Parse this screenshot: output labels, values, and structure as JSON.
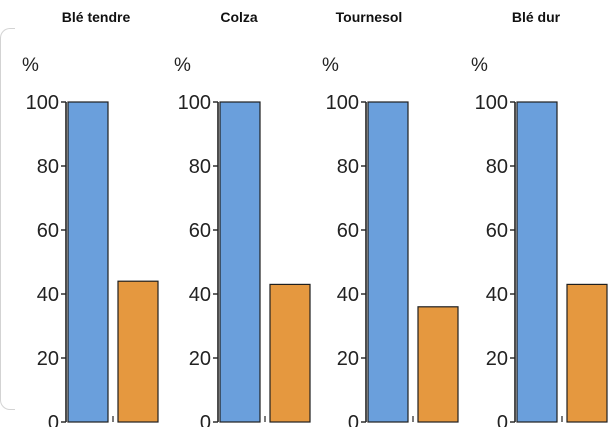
{
  "chart_data": [
    {
      "type": "bar",
      "title": "Blé tendre",
      "ylabel": "%",
      "ylim": [
        0,
        100
      ],
      "yticks": [
        "100",
        "80",
        "60",
        "40",
        "20",
        "0"
      ],
      "values": [
        100,
        44
      ]
    },
    {
      "type": "bar",
      "title": "Colza",
      "ylabel": "%",
      "ylim": [
        0,
        100
      ],
      "yticks": [
        "100",
        "80",
        "60",
        "40",
        "20",
        "0"
      ],
      "values": [
        100,
        43
      ]
    },
    {
      "type": "bar",
      "title": "Tournesol",
      "ylabel": "%",
      "ylim": [
        0,
        100
      ],
      "yticks": [
        "100",
        "80",
        "60",
        "40",
        "20",
        "0"
      ],
      "values": [
        100,
        36
      ]
    },
    {
      "type": "bar",
      "title": "Blé dur",
      "ylabel": "%",
      "ylim": [
        0,
        100
      ],
      "yticks": [
        "100",
        "80",
        "60",
        "40",
        "20",
        "0"
      ],
      "values": [
        100,
        43
      ]
    }
  ],
  "colors": {
    "bar_primary": "#6a9fdc",
    "bar_secondary": "#e5983f",
    "axis": "#222222",
    "bar_outline": "#1f1f1f"
  }
}
